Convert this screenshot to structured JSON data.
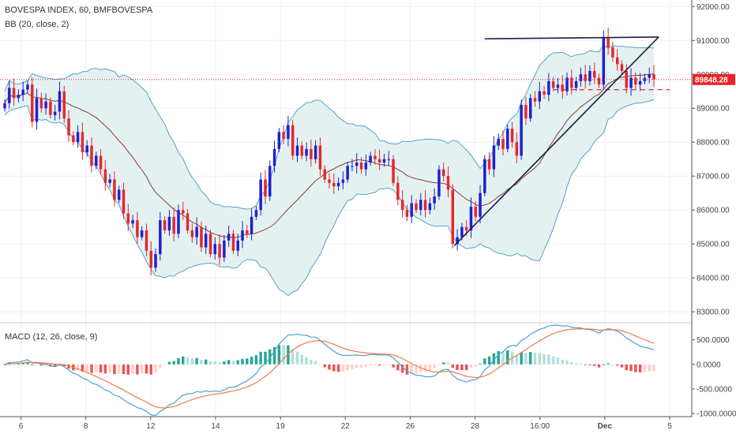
{
  "header": {
    "symbol_line": "BOVESPA INDEX, 60, BMFBOVESPA",
    "bb_line": "BB (20, close, 2)",
    "macd_line": "MACD (12, 26, close, 9)"
  },
  "chart_data": [
    {
      "type": "candlestick",
      "title": "BOVESPA INDEX, 60, BMFBOVESPA",
      "indicator": "BB (20, close, 2)",
      "y_axis_side": "right",
      "ylim": [
        82700,
        92100
      ],
      "y_ticks": [
        83000,
        84000,
        85000,
        86000,
        87000,
        88000,
        89000,
        90000,
        91000,
        92000
      ],
      "y_tick_labels": [
        "83000.00",
        "84000.00",
        "85000.00",
        "86000.00",
        "87000.00",
        "88000.00",
        "89000.00",
        "90000.00",
        "91000.00",
        "92000.00"
      ],
      "x_tick_labels": [
        "6",
        "8",
        "12",
        "14",
        "19",
        "22",
        "26",
        "28",
        "16:00",
        "Dec",
        "5"
      ],
      "x_tick_positions": [
        5,
        25,
        45,
        65,
        85,
        105,
        125,
        145,
        165,
        185,
        205
      ],
      "last_price": 89848.28,
      "last_price_label": "89848.28",
      "colors": {
        "up": "#1f1fd1",
        "down": "#e8262a",
        "band": "#5aa0c8",
        "band_fill": "#e3f2f1",
        "basis": "#8b3a3a",
        "trendline": "#1c1c4a",
        "price_line": "#e8262a"
      },
      "close": [
        89150,
        89600,
        89300,
        89400,
        89550,
        89700,
        88600,
        89300,
        89000,
        89200,
        88800,
        88900,
        89500,
        88700,
        88200,
        88000,
        88300,
        87700,
        87900,
        87300,
        87600,
        87200,
        86800,
        86900,
        86300,
        86600,
        85900,
        85600,
        85700,
        85200,
        85400,
        84800,
        84300,
        84700,
        85700,
        85400,
        85800,
        85300,
        86000,
        85900,
        85400,
        85200,
        85500,
        84900,
        85300,
        84700,
        85000,
        84600,
        85100,
        85300,
        84800,
        85100,
        85400,
        85300,
        85800,
        86000,
        86900,
        86400,
        87300,
        87800,
        88300,
        88100,
        88500,
        87600,
        87900,
        87600,
        87800,
        87500,
        87900,
        87200,
        86900,
        86800,
        86700,
        86800,
        86900,
        87300,
        87300,
        87400,
        87200,
        87400,
        87600,
        87500,
        87400,
        87500,
        87500,
        86800,
        86300,
        86000,
        85800,
        86200,
        86000,
        86300,
        86000,
        86200,
        86400,
        87200,
        87000,
        86600,
        85000,
        85200,
        85500,
        85400,
        86100,
        85800,
        86500,
        87500,
        87200,
        87900,
        88100,
        87800,
        88400,
        88000,
        87600,
        89100,
        88700,
        89300,
        89200,
        89500,
        89400,
        89800,
        89600,
        89700,
        89500,
        89900,
        89600,
        89800,
        90000,
        89800,
        90100,
        89900,
        89700,
        91100,
        90800,
        90500,
        90300,
        90100,
        89600,
        89900,
        89700,
        89800,
        89900,
        90000,
        89850
      ],
      "bb_upper_note": "Bollinger upper band envelope",
      "macd": {
        "label": "MACD (12, 26, close, 9)",
        "ylim": [
          -1000,
          800
        ],
        "y_ticks": [
          500,
          0,
          -500,
          -1000
        ],
        "y_tick_labels": [
          "500.0000",
          "0.0000",
          "-500.0000",
          "-1000.0000"
        ],
        "colors": {
          "macd": "#4aa3d0",
          "signal": "#f07a4a",
          "hist_pos": "#26a69a",
          "hist_pos_light": "#b2dfdb",
          "hist_neg": "#ef5350",
          "hist_neg_light": "#ffcdd2"
        }
      }
    }
  ]
}
